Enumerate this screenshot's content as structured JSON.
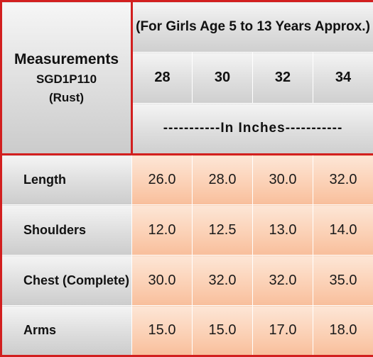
{
  "header": {
    "title": "Measurements",
    "code": "SGD1P110",
    "color_name": "(Rust)",
    "age_range": "(For Girls Age 5 to 13 Years Approx.)",
    "units": "-----------In   Inches-----------"
  },
  "sizes": [
    "28",
    "30",
    "32",
    "34"
  ],
  "rows": [
    {
      "label": "Length",
      "values": [
        "26.0",
        "28.0",
        "30.0",
        "32.0"
      ]
    },
    {
      "label": "Shoulders",
      "values": [
        "12.0",
        "12.5",
        "13.0",
        "14.0"
      ]
    },
    {
      "label": "Chest (Complete)",
      "values": [
        "30.0",
        "32.0",
        "32.0",
        "35.0"
      ]
    },
    {
      "label": "Arms",
      "values": [
        "15.0",
        "15.0",
        "17.0",
        "18.0"
      ]
    }
  ],
  "colors": {
    "border_accent": "#d21f1f",
    "header_gray": "#dedede",
    "value_peach": "#fbcfb3"
  }
}
